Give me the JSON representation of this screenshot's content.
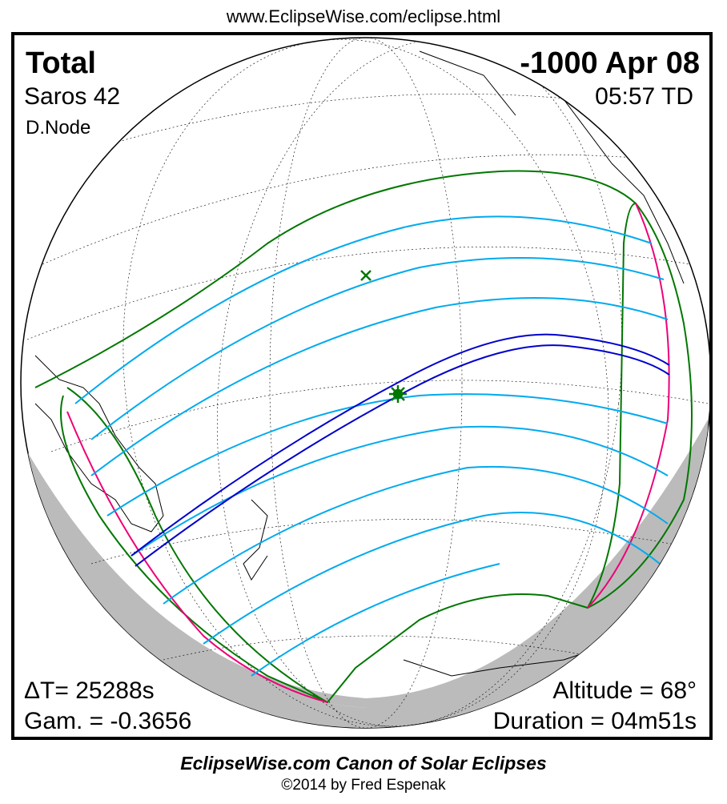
{
  "header": {
    "url": "www.EclipseWise.com/eclipse.html"
  },
  "eclipse": {
    "type": "Total",
    "date": "-1000 Apr 08",
    "saros": "Saros  42",
    "time": "05:57 TD",
    "node": "D.Node",
    "delta_t": "ΔT=  25288s",
    "gamma": "Gam. = -0.3656",
    "altitude": "Altitude = 68°",
    "duration": "Duration = 04m51s"
  },
  "map": {
    "colors": {
      "penumbral_limits": "#007700",
      "partial_lines": "#00aaee",
      "central_path": "#0000cc",
      "rise_set_curve": "#ee0077",
      "night_shade": "#bbbbbb",
      "coastlines": "#000000"
    },
    "markers": {
      "greatest_eclipse": "star-marker",
      "subsolar_point": "x-marker"
    }
  },
  "footer": {
    "title": "EclipseWise.com Canon of Solar Eclipses",
    "copyright": "©2014 by Fred Espenak"
  }
}
